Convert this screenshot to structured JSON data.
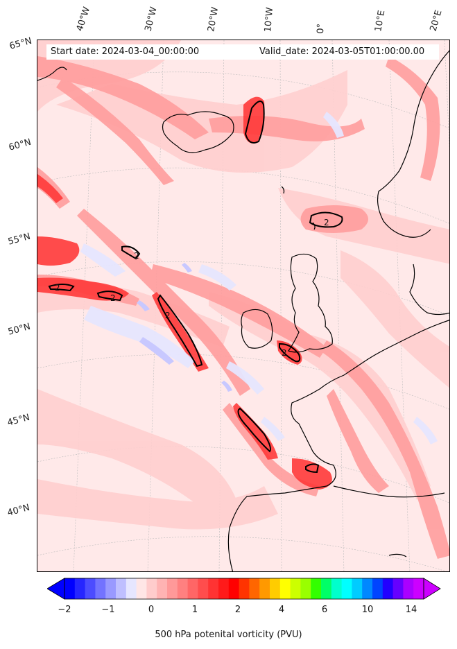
{
  "header": {
    "start_date": "Start date: 2024-03-04_00:00:00",
    "valid_date": "Valid_date: 2024-03-05T01:00:00.00"
  },
  "longitude_labels": [
    "40°W",
    "30°W",
    "20°W",
    "10°W",
    "0°",
    "10°E",
    "20°E"
  ],
  "latitude_labels": [
    "65°N",
    "60°N",
    "55°N",
    "50°N",
    "45°N",
    "40°N"
  ],
  "contour_labels": [
    "2",
    "2",
    "2",
    "2",
    "2",
    "2"
  ],
  "colorbar": {
    "ticks": [
      "−2",
      "−1",
      "0",
      "1",
      "2",
      "4",
      "6",
      "10",
      "14"
    ],
    "label": "500 hPa potenital vorticity (PVU)",
    "colors": [
      "#0000ff",
      "#2626ff",
      "#4c4cff",
      "#7373ff",
      "#9999ff",
      "#bfbfff",
      "#e6e6ff",
      "#ffe6e6",
      "#ffcccc",
      "#ffb3b3",
      "#ff9999",
      "#ff8080",
      "#ff6666",
      "#ff4d4d",
      "#ff3333",
      "#ff1a1a",
      "#ff0000",
      "#ff3300",
      "#ff6600",
      "#ff9900",
      "#ffcc00",
      "#ffff00",
      "#ccff00",
      "#99ff00",
      "#33ff00",
      "#00ff66",
      "#00ffcc",
      "#00ffff",
      "#00ccff",
      "#0088ff",
      "#0044ff",
      "#2200ff",
      "#6600ff",
      "#aa00ff",
      "#cc00ff"
    ]
  }
}
